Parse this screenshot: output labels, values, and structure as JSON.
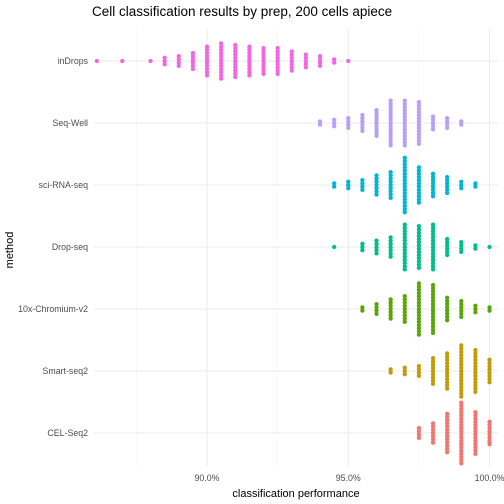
{
  "chart_data": {
    "type": "scatter",
    "subtype": "beeswarm",
    "title": "Cell classification results by prep, 200 cells apiece",
    "xlabel": "classification performance",
    "ylabel": "method",
    "x_ticks": [
      {
        "value": 0.9,
        "label": "90.0%"
      },
      {
        "value": 0.95,
        "label": "95.0%"
      },
      {
        "value": 1.0,
        "label": "100.0%"
      }
    ],
    "x_minor": [
      0.875,
      0.925,
      0.975
    ],
    "xlim": [
      0.86,
      1.003
    ],
    "grid": true,
    "legend": "none",
    "series": [
      {
        "category": "inDrops",
        "color": "#F564E3",
        "points": [
          [
            0.861,
            1
          ],
          [
            0.87,
            1
          ],
          [
            0.88,
            1
          ],
          [
            0.885,
            3
          ],
          [
            0.89,
            4
          ],
          [
            0.895,
            6
          ],
          [
            0.9,
            10
          ],
          [
            0.905,
            12
          ],
          [
            0.91,
            11
          ],
          [
            0.915,
            10
          ],
          [
            0.92,
            9
          ],
          [
            0.925,
            9
          ],
          [
            0.93,
            7
          ],
          [
            0.935,
            5
          ],
          [
            0.94,
            4
          ],
          [
            0.945,
            2
          ],
          [
            0.95,
            1
          ]
        ]
      },
      {
        "category": "Seq-Well",
        "color": "#B79FF9",
        "points": [
          [
            0.94,
            2
          ],
          [
            0.945,
            3
          ],
          [
            0.95,
            4
          ],
          [
            0.955,
            6
          ],
          [
            0.96,
            9
          ],
          [
            0.965,
            15
          ],
          [
            0.97,
            15
          ],
          [
            0.975,
            14
          ],
          [
            0.98,
            5
          ],
          [
            0.985,
            4
          ],
          [
            0.99,
            2
          ]
        ]
      },
      {
        "category": "sci-RNA-seq",
        "color": "#00B5D6",
        "points": [
          [
            0.945,
            2
          ],
          [
            0.95,
            3
          ],
          [
            0.955,
            4
          ],
          [
            0.96,
            7
          ],
          [
            0.965,
            9
          ],
          [
            0.97,
            18
          ],
          [
            0.975,
            12
          ],
          [
            0.98,
            8
          ],
          [
            0.985,
            6
          ],
          [
            0.99,
            3
          ],
          [
            0.995,
            2
          ]
        ]
      },
      {
        "category": "Drop-seq",
        "color": "#00BD8A",
        "points": [
          [
            0.945,
            1
          ],
          [
            0.955,
            3
          ],
          [
            0.96,
            5
          ],
          [
            0.965,
            7
          ],
          [
            0.97,
            15
          ],
          [
            0.975,
            14
          ],
          [
            0.98,
            15
          ],
          [
            0.985,
            6
          ],
          [
            0.99,
            4
          ],
          [
            0.995,
            2
          ],
          [
            1.0,
            1
          ]
        ]
      },
      {
        "category": "10x-Chromium-v2",
        "color": "#5AA60A",
        "points": [
          [
            0.955,
            2
          ],
          [
            0.96,
            4
          ],
          [
            0.965,
            7
          ],
          [
            0.97,
            9
          ],
          [
            0.975,
            17
          ],
          [
            0.98,
            16
          ],
          [
            0.985,
            8
          ],
          [
            0.99,
            6
          ],
          [
            0.995,
            3
          ],
          [
            1.0,
            2
          ]
        ]
      },
      {
        "category": "Smart-seq2",
        "color": "#C29B07",
        "points": [
          [
            0.965,
            2
          ],
          [
            0.97,
            3
          ],
          [
            0.975,
            4
          ],
          [
            0.98,
            9
          ],
          [
            0.985,
            12
          ],
          [
            0.99,
            17
          ],
          [
            0.995,
            14
          ],
          [
            1.0,
            8
          ]
        ]
      },
      {
        "category": "CEL-Seq2",
        "color": "#F3756E",
        "points": [
          [
            0.975,
            4
          ],
          [
            0.98,
            7
          ],
          [
            0.985,
            13
          ],
          [
            0.99,
            20
          ],
          [
            0.995,
            14
          ],
          [
            1.0,
            8
          ]
        ]
      }
    ]
  }
}
